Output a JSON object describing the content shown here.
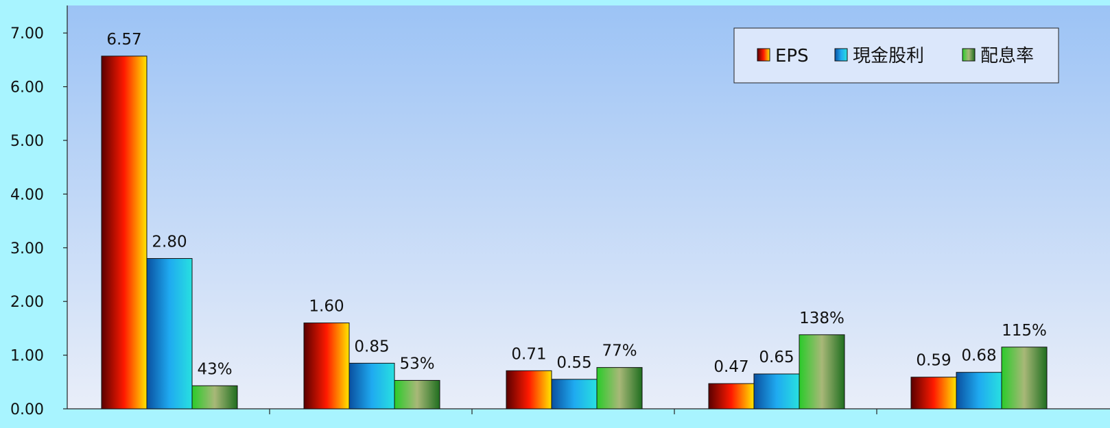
{
  "chart_data": {
    "type": "bar",
    "categories": [
      "",
      "",
      "",
      "",
      ""
    ],
    "ylim": [
      0,
      7.5
    ],
    "yticks": [
      "0.00",
      "1.00",
      "2.00",
      "3.00",
      "4.00",
      "5.00",
      "6.00",
      "7.00"
    ],
    "grid": false,
    "legend_position": "top-right",
    "series": [
      {
        "name": "EPS",
        "key": "eps",
        "values": [
          6.57,
          1.6,
          0.71,
          0.47,
          0.59
        ],
        "labels": [
          "6.57",
          "1.60",
          "0.71",
          "0.47",
          "0.59"
        ],
        "colors": [
          "#5a0000",
          "#ff1a00",
          "#ffe600"
        ]
      },
      {
        "name": "現金股利",
        "key": "cash",
        "values": [
          2.8,
          0.85,
          0.55,
          0.65,
          0.68
        ],
        "labels": [
          "2.80",
          "0.85",
          "0.55",
          "0.65",
          "0.68"
        ],
        "colors": [
          "#0a50a0",
          "#1faaf0",
          "#28e0e0"
        ]
      },
      {
        "name": "配息率",
        "key": "ratio",
        "values": [
          0.43,
          0.53,
          0.77,
          1.38,
          1.15
        ],
        "labels": [
          "43%",
          "53%",
          "77%",
          "138%",
          "115%"
        ],
        "colors": [
          "#2acb2a",
          "#a8b878",
          "#1f6e1f"
        ]
      }
    ]
  }
}
